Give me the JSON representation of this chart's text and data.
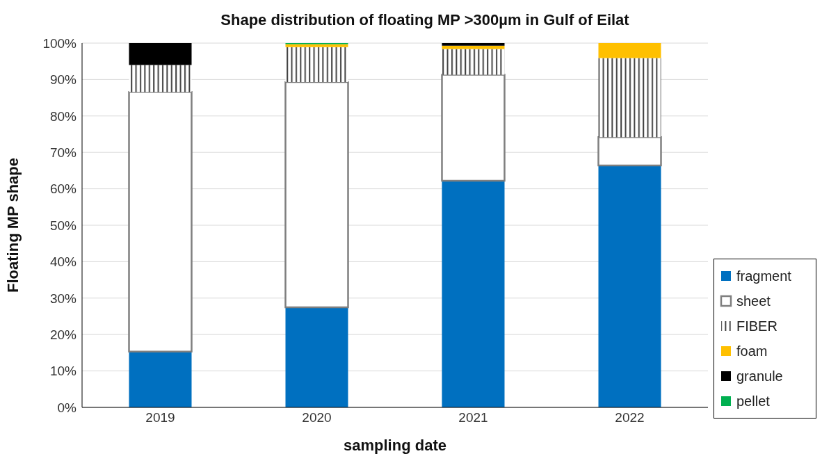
{
  "chart_data": {
    "type": "bar",
    "title": "Shape distribution of floating MP >300µm in Gulf of Eilat",
    "xlabel": "sampling date",
    "ylabel": "Floating MP shape",
    "categories": [
      "2019",
      "2020",
      "2021",
      "2022"
    ],
    "stacked": true,
    "series": [
      {
        "name": "fragment",
        "color": "#0070c0",
        "values": [
          15.3,
          27.5,
          62.2,
          66.4
        ]
      },
      {
        "name": "sheet",
        "color": "#ffffff",
        "values": [
          71.3,
          61.8,
          29.1,
          7.8
        ]
      },
      {
        "name": "FIBER",
        "color": "#404040",
        "values": [
          7.4,
          9.6,
          7.1,
          21.7
        ]
      },
      {
        "name": "foam",
        "color": "#ffc000",
        "values": [
          0,
          0.8,
          0.9,
          4.1
        ]
      },
      {
        "name": "granule",
        "color": "#000000",
        "values": [
          6.0,
          0,
          0.7,
          0
        ]
      },
      {
        "name": "pellet",
        "color": "#00b050",
        "values": [
          0,
          0.3,
          0,
          0
        ]
      }
    ],
    "ylim": [
      0,
      100
    ],
    "yticks": [
      {
        "value": 0,
        "label": "0%"
      },
      {
        "value": 10,
        "label": "10%"
      },
      {
        "value": 20,
        "label": "20%"
      },
      {
        "value": 30,
        "label": "30%"
      },
      {
        "value": 40,
        "label": "40%"
      },
      {
        "value": 50,
        "label": "50%"
      },
      {
        "value": 60,
        "label": "60%"
      },
      {
        "value": 70,
        "label": "70%"
      },
      {
        "value": 80,
        "label": "80%"
      },
      {
        "value": 90,
        "label": "90%"
      },
      {
        "value": 100,
        "label": "100%"
      }
    ],
    "grid": "y",
    "legend": "right"
  }
}
